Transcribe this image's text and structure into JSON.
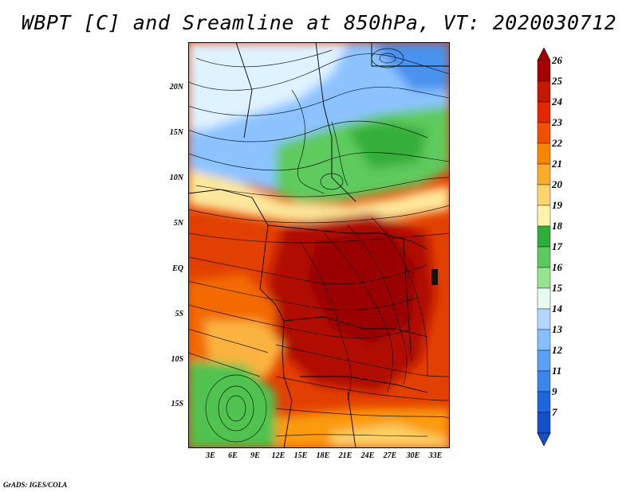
{
  "title": "WBPT [C] and Sreamline at 850hPa, VT: 2020030712",
  "footer": "GrADS: IGES/COLA",
  "lat_labels": [
    "20N",
    "15N",
    "10N",
    "5N",
    "EQ",
    "5S",
    "10S",
    "15S"
  ],
  "lon_labels": [
    "3E",
    "6E",
    "9E",
    "12E",
    "15E",
    "18E",
    "21E",
    "24E",
    "27E",
    "30E",
    "33E"
  ],
  "colorbar": {
    "labels": [
      "26",
      "25",
      "24",
      "23",
      "22",
      "21",
      "20",
      "19",
      "18",
      "17",
      "16",
      "15",
      "14",
      "13",
      "12",
      "11",
      "9",
      "7"
    ],
    "colors": [
      "#a40000",
      "#c41700",
      "#e22800",
      "#f05000",
      "#fa8600",
      "#fbad2a",
      "#fbd46e",
      "#fef3ad",
      "#31ad3a",
      "#5dc95e",
      "#96e490",
      "#e6fcf0",
      "#b4d5ff",
      "#87beff",
      "#5aa0f5",
      "#3c86ea",
      "#1e66dc",
      "#1450c8"
    ]
  },
  "map": {
    "description_icon": "weather-map-icon",
    "lat_range": [
      -20,
      24
    ],
    "lon_range": [
      0,
      35
    ]
  }
}
